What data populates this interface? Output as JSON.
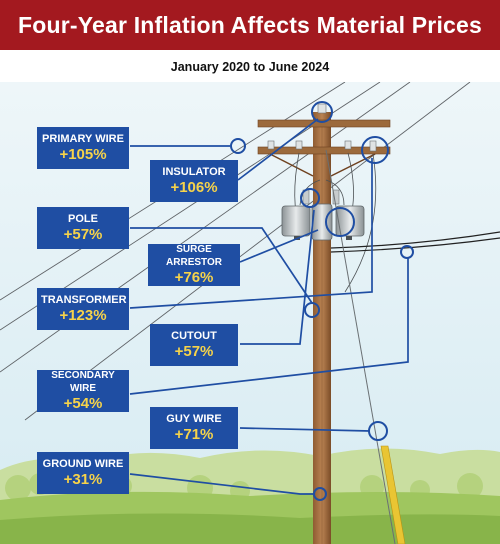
{
  "header": {
    "title": "Four-Year Inflation Affects Material Prices",
    "subtitle": "January 2020 to June 2024"
  },
  "colors": {
    "header_bg": "#a3191f",
    "label_bg": "#1f4ea3",
    "percent_text": "#f6d34a",
    "callout_line": "#1f4ea3"
  },
  "components": [
    {
      "name": "PRIMARY WIRE",
      "change": "+105%"
    },
    {
      "name": "INSULATOR",
      "change": "+106%"
    },
    {
      "name": "POLE",
      "change": "+57%"
    },
    {
      "name": "SURGE ARRESTOR",
      "change": "+76%"
    },
    {
      "name": "TRANSFORMER",
      "change": "+123%"
    },
    {
      "name": "CUTOUT",
      "change": "+57%"
    },
    {
      "name": "SECONDARY WIRE",
      "change": "+54%"
    },
    {
      "name": "GUY WIRE",
      "change": "+71%"
    },
    {
      "name": "GROUND WIRE",
      "change": "+31%"
    }
  ]
}
